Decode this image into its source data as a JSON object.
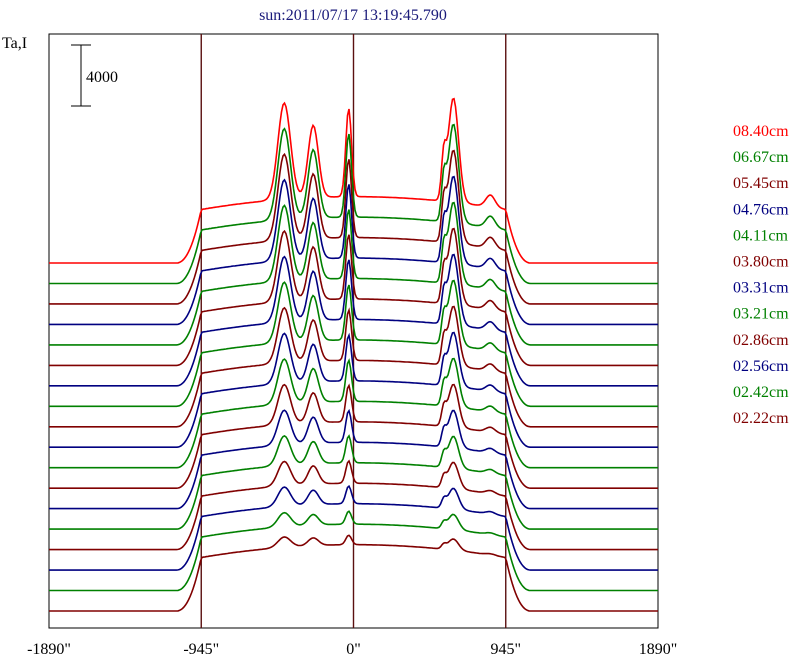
{
  "title": "sun:2011/07/17 13:19:45.790",
  "ylabel": "Ta,I",
  "scale_bar_label": "4000",
  "chart_data": {
    "type": "line",
    "title": "sun:2011/07/17 13:19:45.790",
    "ylabel": "Ta,I",
    "xlabel": "",
    "x_ticks": [
      "-1890\"",
      "-945\"",
      "0\"",
      "945\"",
      "1890\""
    ],
    "x_tick_values": [
      -1890,
      -945,
      0,
      945,
      1890
    ],
    "xlim": [
      -1890,
      1890
    ],
    "vertical_lines_at": [
      -945,
      0,
      945
    ],
    "scale_bar": 4000,
    "colors": {
      "red": "#ff0000",
      "green": "#008000",
      "darkred": "#800000",
      "navy": "#000080"
    },
    "series": [
      {
        "name": "08.40cm",
        "color": "#ff0000"
      },
      {
        "name": "06.67cm",
        "color": "#008000"
      },
      {
        "name": "05.45cm",
        "color": "#800000"
      },
      {
        "name": "04.76cm",
        "color": "#000080"
      },
      {
        "name": "04.11cm",
        "color": "#008000"
      },
      {
        "name": "03.80cm",
        "color": "#800000"
      },
      {
        "name": "03.31cm",
        "color": "#000080"
      },
      {
        "name": "03.21cm",
        "color": "#008000"
      },
      {
        "name": "02.86cm",
        "color": "#800000"
      },
      {
        "name": "02.56cm",
        "color": "#000080"
      },
      {
        "name": "02.42cm",
        "color": "#008000"
      },
      {
        "name": "02.22cm",
        "color": "#800000"
      }
    ],
    "extra_trace_colors": [
      "#000080",
      "#008000",
      "#800000",
      "#000080",
      "#008000",
      "#800000"
    ]
  }
}
